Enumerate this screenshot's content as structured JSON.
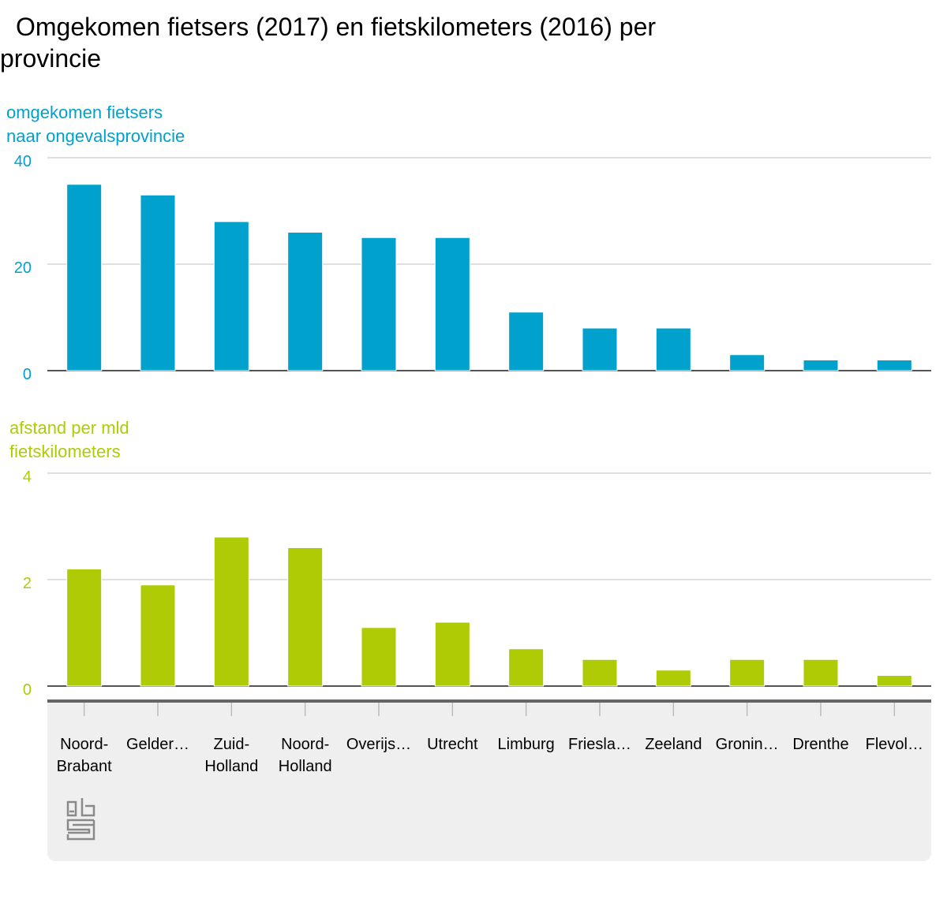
{
  "chart_data": {
    "title": "Omgekomen fietsers (2017) en fietskilometers (2016) per provincie",
    "type": "bar",
    "categories": [
      [
        "Noord-",
        "Brabant"
      ],
      [
        "Gelder…"
      ],
      [
        "Zuid-",
        "Holland"
      ],
      [
        "Noord-",
        "Holland"
      ],
      [
        "Overijs…"
      ],
      [
        "Utrecht"
      ],
      [
        "Limburg"
      ],
      [
        "Friesla…"
      ],
      [
        "Zeeland"
      ],
      [
        "Gronin…"
      ],
      [
        "Drenthe"
      ],
      [
        "Flevol…"
      ]
    ],
    "panels": [
      {
        "ylabel": [
          "omgekomen fietsers",
          "naar ongevalsprovincie"
        ],
        "color": "#00a1cd",
        "ylim": [
          0,
          40
        ],
        "ticks": [
          "0",
          "20",
          "40"
        ],
        "values": [
          35,
          33,
          28,
          26,
          25,
          25,
          11,
          8,
          8,
          3,
          2,
          2
        ]
      },
      {
        "ylabel": [
          "afstand per mld",
          "fietskilometers"
        ],
        "color": "#afcb05",
        "ylim": [
          0,
          4
        ],
        "ticks": [
          "0",
          "2",
          "4"
        ],
        "values": [
          2.2,
          1.9,
          2.8,
          2.6,
          1.1,
          1.2,
          0.7,
          0.5,
          0.3,
          0.5,
          0.5,
          0.2
        ]
      }
    ],
    "grid": true,
    "logo": "cbs"
  }
}
